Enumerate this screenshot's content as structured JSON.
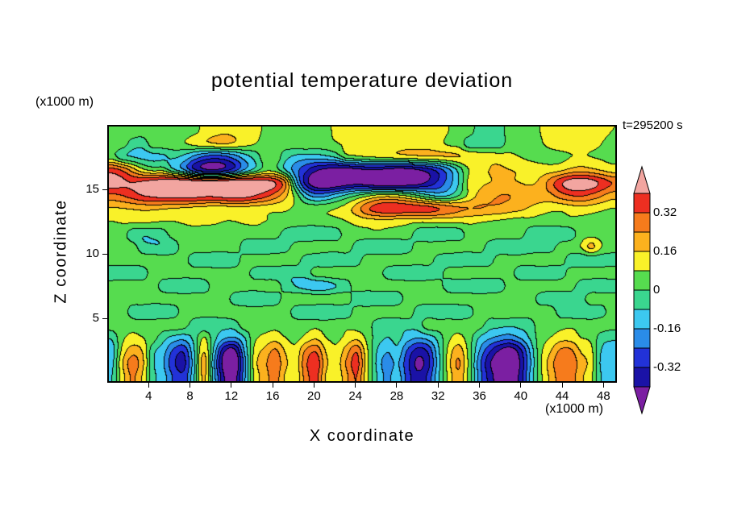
{
  "figure": {
    "title": "potential temperature deviation",
    "time_label": "t=295200 s",
    "x_axis": {
      "label": "X coordinate",
      "unit": "(x1000 m)",
      "ticks": [
        4,
        8,
        12,
        16,
        20,
        24,
        28,
        32,
        36,
        40,
        44,
        48
      ],
      "range": [
        0,
        49.3
      ]
    },
    "z_axis": {
      "label": "Z coordinate",
      "unit": "(x1000 m)",
      "ticks": [
        5,
        10,
        15
      ],
      "range": [
        0,
        20
      ]
    },
    "colorbar": {
      "labels": [
        "0.32",
        "0.16",
        "0",
        "-0.16",
        "-0.32"
      ]
    }
  },
  "colors": {
    "background": "#ffffff",
    "frame": "#000000",
    "text": "#000000"
  },
  "chart_data": {
    "type": "heatmap",
    "title": "potential temperature deviation",
    "xlabel": "X coordinate (x1000 m)",
    "ylabel": "Z coordinate (x1000 m)",
    "time_annotation": "t=295200 s",
    "x_range": [
      0,
      49.3
    ],
    "z_range": [
      0,
      20
    ],
    "x_ticks": [
      4,
      8,
      12,
      16,
      20,
      24,
      28,
      32,
      36,
      40,
      44,
      48
    ],
    "z_ticks": [
      5,
      10,
      15
    ],
    "levels": [
      -0.4,
      -0.32,
      -0.24,
      -0.16,
      -0.08,
      0,
      0.08,
      0.16,
      0.24,
      0.32,
      0.4
    ],
    "colors_low_to_high": [
      "#7b1fa2",
      "#1a12a6",
      "#2232d8",
      "#2a8ce8",
      "#3cc8f0",
      "#3ad68f",
      "#56dc4f",
      "#f9f129",
      "#fcb11e",
      "#f67b1c",
      "#ed2f21",
      "#f2a5a0"
    ],
    "colorbar_labels": [
      "0.32",
      "0.16",
      "0",
      "-0.16",
      "-0.32"
    ],
    "nx": 50,
    "nz": 20,
    "grid_rows_top_to_bottom": [
      [
        0.04,
        0.05,
        0.05,
        0.04,
        0.05,
        0.06,
        0.05,
        0.04,
        0.06,
        0.1,
        0.13,
        0.15,
        0.14,
        0.12,
        0.1,
        0.07,
        0.05,
        0.04,
        0.05,
        0.05,
        0.06,
        0.07,
        0.09,
        0.12,
        0.14,
        0.15,
        0.15,
        0.14,
        0.13,
        0.13,
        0.14,
        0.13,
        0.11,
        0.08,
        0.05,
        0.04,
        -0.04,
        -0.05,
        -0.04,
        0.04,
        0.05,
        0.06,
        0.08,
        0.11,
        0.13,
        0.14,
        0.13,
        0.12,
        0.1,
        0.08
      ],
      [
        0.05,
        0.04,
        -0.04,
        -0.05,
        0.04,
        0.05,
        0.06,
        0.07,
        0.1,
        0.13,
        0.15,
        0.16,
        0.14,
        0.11,
        0.08,
        0.05,
        0.04,
        0.04,
        0.05,
        0.06,
        0.05,
        0.05,
        0.07,
        0.1,
        0.12,
        0.13,
        0.13,
        0.12,
        0.12,
        0.13,
        0.13,
        0.12,
        0.1,
        0.07,
        0.05,
        -0.04,
        -0.06,
        -0.05,
        -0.04,
        0.04,
        0.05,
        0.05,
        0.07,
        0.1,
        0.12,
        0.12,
        0.11,
        0.1,
        0.08,
        0.06
      ],
      [
        0.04,
        -0.05,
        -0.08,
        -0.1,
        -0.1,
        -0.09,
        -0.07,
        -0.1,
        -0.18,
        -0.25,
        -0.28,
        -0.26,
        -0.2,
        -0.12,
        -0.05,
        0.04,
        0.05,
        -0.05,
        -0.1,
        -0.12,
        -0.12,
        -0.1,
        -0.06,
        0.04,
        0.06,
        0.08,
        0.09,
        0.1,
        0.12,
        0.13,
        0.14,
        0.15,
        0.15,
        0.16,
        0.16,
        0.15,
        0.14,
        0.13,
        0.12,
        0.1,
        0.08,
        0.06,
        0.05,
        0.05,
        0.06,
        0.08,
        0.09,
        0.08,
        0.07,
        0.06
      ],
      [
        0.35,
        0.3,
        0.2,
        0.1,
        0.05,
        0.05,
        -0.06,
        -0.15,
        -0.3,
        -0.38,
        -0.4,
        -0.36,
        -0.28,
        -0.15,
        -0.05,
        0.05,
        0.04,
        -0.08,
        -0.2,
        -0.3,
        -0.38,
        -0.42,
        -0.44,
        -0.44,
        -0.42,
        -0.4,
        -0.4,
        -0.42,
        -0.44,
        -0.43,
        -0.4,
        -0.35,
        -0.28,
        -0.18,
        -0.05,
        0.08,
        0.13,
        0.16,
        0.17,
        0.16,
        0.15,
        0.13,
        0.12,
        0.12,
        0.14,
        0.18,
        0.2,
        0.18,
        0.15,
        0.12
      ],
      [
        0.45,
        0.42,
        0.4,
        0.42,
        0.45,
        0.48,
        0.5,
        0.5,
        0.48,
        0.46,
        0.46,
        0.48,
        0.5,
        0.5,
        0.48,
        0.45,
        0.4,
        0.25,
        -0.1,
        -0.35,
        -0.48,
        -0.52,
        -0.5,
        -0.46,
        -0.44,
        -0.46,
        -0.5,
        -0.52,
        -0.52,
        -0.48,
        -0.44,
        -0.38,
        -0.3,
        -0.2,
        -0.08,
        0.1,
        0.14,
        0.16,
        0.17,
        0.17,
        0.16,
        0.15,
        0.18,
        0.28,
        0.38,
        0.45,
        0.46,
        0.44,
        0.38,
        0.32
      ],
      [
        0.3,
        0.32,
        0.36,
        0.4,
        0.42,
        0.44,
        0.45,
        0.45,
        0.44,
        0.42,
        0.42,
        0.44,
        0.45,
        0.44,
        0.4,
        0.35,
        0.28,
        0.18,
        0.05,
        -0.12,
        -0.2,
        -0.18,
        -0.12,
        -0.06,
        0.0,
        0.05,
        0.1,
        0.12,
        0.1,
        0.06,
        0.0,
        -0.06,
        -0.1,
        -0.08,
        0.0,
        0.1,
        0.18,
        0.22,
        0.24,
        0.24,
        0.22,
        0.2,
        0.2,
        0.22,
        0.28,
        0.32,
        0.33,
        0.3,
        0.25,
        0.2
      ],
      [
        0.15,
        0.16,
        0.17,
        0.18,
        0.18,
        0.17,
        0.16,
        0.15,
        0.14,
        0.13,
        0.12,
        0.12,
        0.13,
        0.13,
        0.12,
        0.11,
        0.1,
        0.09,
        0.07,
        0.05,
        0.05,
        0.06,
        0.08,
        0.12,
        0.2,
        0.3,
        0.36,
        0.38,
        0.38,
        0.37,
        0.36,
        0.35,
        0.32,
        0.28,
        0.25,
        0.24,
        0.24,
        0.23,
        0.22,
        0.2,
        0.18,
        0.15,
        0.12,
        0.1,
        0.1,
        0.12,
        0.13,
        0.12,
        0.1,
        0.08
      ],
      [
        0.08,
        0.09,
        0.1,
        0.1,
        0.09,
        0.08,
        0.08,
        0.09,
        0.1,
        0.1,
        0.09,
        0.08,
        0.08,
        0.09,
        0.09,
        0.08,
        0.07,
        0.06,
        0.05,
        0.04,
        0.04,
        0.05,
        0.06,
        0.08,
        0.1,
        0.12,
        0.13,
        0.13,
        0.12,
        0.11,
        0.1,
        0.1,
        0.1,
        0.1,
        0.1,
        0.1,
        0.09,
        0.08,
        0.07,
        0.06,
        0.05,
        0.05,
        0.04,
        0.04,
        0.05,
        0.06,
        0.06,
        0.05,
        0.04,
        0.04
      ],
      [
        0.05,
        0.04,
        -0.05,
        -0.07,
        -0.06,
        -0.04,
        0.04,
        0.05,
        0.05,
        0.04,
        0.05,
        0.06,
        0.05,
        0.04,
        0.05,
        0.05,
        0.04,
        -0.04,
        -0.06,
        -0.07,
        -0.07,
        -0.06,
        -0.04,
        0.04,
        0.05,
        0.05,
        0.06,
        0.05,
        0.05,
        0.04,
        -0.04,
        -0.06,
        -0.07,
        -0.06,
        -0.05,
        0.04,
        0.05,
        0.05,
        0.04,
        0.05,
        0.04,
        -0.05,
        -0.06,
        -0.07,
        -0.06,
        -0.04,
        0.04,
        0.05,
        0.05,
        0.04
      ],
      [
        0.04,
        0.05,
        0.04,
        -0.05,
        -0.07,
        -0.07,
        -0.05,
        0.04,
        0.05,
        0.06,
        0.05,
        0.04,
        0.05,
        -0.04,
        -0.06,
        -0.07,
        -0.06,
        -0.04,
        0.04,
        0.05,
        0.06,
        0.05,
        0.04,
        0.05,
        -0.04,
        -0.06,
        -0.07,
        -0.07,
        -0.06,
        -0.04,
        0.04,
        0.05,
        0.05,
        0.06,
        0.05,
        0.04,
        0.05,
        -0.04,
        -0.06,
        -0.07,
        -0.07,
        -0.06,
        -0.05,
        -0.04,
        0.04,
        0.05,
        0.08,
        0.18,
        0.08,
        0.05
      ],
      [
        0.05,
        0.06,
        0.05,
        0.04,
        0.05,
        0.04,
        0.05,
        0.04,
        -0.05,
        -0.07,
        -0.07,
        -0.06,
        -0.05,
        0.04,
        0.05,
        0.05,
        0.06,
        0.05,
        0.04,
        -0.04,
        -0.06,
        -0.08,
        -0.07,
        -0.05,
        -0.04,
        0.05,
        0.06,
        0.05,
        0.04,
        0.05,
        0.04,
        0.05,
        -0.04,
        -0.06,
        -0.07,
        -0.06,
        -0.05,
        -0.04,
        0.05,
        0.05,
        0.04,
        0.05,
        0.06,
        0.05,
        0.04,
        -0.05,
        -0.06,
        -0.06,
        -0.05,
        -0.05
      ],
      [
        -0.05,
        -0.06,
        -0.05,
        -0.04,
        0.04,
        0.05,
        0.06,
        0.05,
        0.04,
        0.05,
        0.05,
        0.04,
        0.05,
        0.04,
        -0.04,
        -0.06,
        -0.07,
        -0.07,
        -0.06,
        -0.04,
        0.04,
        0.05,
        0.06,
        0.05,
        0.05,
        0.04,
        0.05,
        -0.04,
        -0.06,
        -0.07,
        -0.07,
        -0.06,
        -0.04,
        0.04,
        0.05,
        0.06,
        0.05,
        0.04,
        0.05,
        0.04,
        -0.05,
        -0.06,
        -0.07,
        -0.06,
        -0.05,
        0.04,
        0.05,
        0.05,
        0.04,
        0.05
      ],
      [
        0.04,
        0.05,
        0.05,
        0.04,
        0.05,
        -0.04,
        -0.06,
        -0.07,
        -0.06,
        -0.05,
        0.04,
        0.05,
        0.06,
        0.05,
        0.04,
        0.05,
        0.05,
        -0.04,
        -0.08,
        -0.12,
        -0.14,
        -0.12,
        -0.08,
        -0.04,
        0.05,
        0.05,
        0.06,
        0.05,
        0.04,
        0.05,
        0.04,
        0.05,
        0.04,
        -0.05,
        -0.06,
        -0.07,
        -0.07,
        -0.06,
        -0.05,
        0.04,
        0.05,
        0.06,
        0.05,
        0.04,
        0.05,
        0.04,
        -0.05,
        -0.06,
        -0.06,
        -0.05
      ],
      [
        0.05,
        0.04,
        0.05,
        0.06,
        0.05,
        0.04,
        0.05,
        0.04,
        0.05,
        0.05,
        0.04,
        0.05,
        -0.04,
        -0.06,
        -0.07,
        -0.06,
        -0.05,
        0.04,
        0.05,
        0.06,
        0.05,
        0.04,
        0.05,
        0.04,
        -0.05,
        -0.07,
        -0.07,
        -0.06,
        -0.05,
        0.04,
        0.05,
        0.05,
        0.06,
        0.05,
        0.04,
        0.05,
        0.04,
        0.05,
        0.06,
        0.05,
        0.04,
        0.05,
        -0.04,
        -0.06,
        -0.07,
        -0.06,
        -0.04,
        0.05,
        0.04,
        0.05
      ],
      [
        0.04,
        0.05,
        -0.04,
        -0.06,
        -0.07,
        -0.06,
        -0.05,
        0.04,
        0.05,
        0.06,
        0.05,
        0.04,
        0.05,
        0.05,
        0.04,
        0.05,
        0.06,
        0.05,
        -0.04,
        -0.06,
        -0.07,
        -0.07,
        -0.06,
        -0.05,
        0.04,
        0.05,
        0.05,
        0.04,
        0.05,
        0.06,
        -0.04,
        -0.06,
        -0.07,
        -0.06,
        -0.05,
        -0.04,
        0.05,
        0.04,
        0.05,
        0.05,
        0.04,
        0.05,
        0.06,
        0.05,
        -0.04,
        -0.06,
        -0.06,
        -0.05,
        -0.04,
        0.05
      ],
      [
        0.05,
        0.06,
        0.05,
        0.04,
        0.05,
        0.04,
        0.05,
        0.04,
        -0.04,
        -0.06,
        -0.06,
        -0.05,
        -0.04,
        0.05,
        0.04,
        0.05,
        0.06,
        0.05,
        0.04,
        0.05,
        0.05,
        0.04,
        0.05,
        0.06,
        0.05,
        0.04,
        -0.04,
        -0.06,
        -0.06,
        -0.05,
        -0.04,
        0.05,
        0.04,
        0.05,
        0.04,
        0.05,
        0.04,
        -0.04,
        -0.05,
        -0.06,
        -0.05,
        -0.04,
        0.05,
        0.04,
        0.05,
        0.06,
        0.05,
        0.04,
        0.05,
        0.04
      ],
      [
        -0.06,
        0.06,
        0.1,
        0.08,
        0.04,
        -0.05,
        -0.1,
        -0.12,
        -0.06,
        0.08,
        -0.05,
        -0.14,
        -0.16,
        -0.08,
        0.06,
        0.1,
        0.12,
        0.08,
        0.06,
        0.1,
        0.14,
        0.08,
        0.06,
        0.1,
        0.13,
        0.06,
        -0.04,
        -0.08,
        -0.06,
        -0.12,
        -0.15,
        -0.12,
        -0.05,
        0.06,
        0.1,
        0.04,
        -0.08,
        -0.14,
        -0.18,
        -0.2,
        -0.15,
        -0.07,
        0.04,
        0.08,
        0.12,
        0.12,
        0.08,
        0.06,
        -0.04,
        -0.06
      ],
      [
        -0.12,
        0.1,
        0.2,
        0.15,
        -0.05,
        -0.12,
        -0.25,
        -0.3,
        -0.1,
        0.15,
        -0.1,
        -0.38,
        -0.42,
        -0.15,
        0.1,
        0.18,
        0.25,
        0.15,
        0.1,
        0.25,
        0.3,
        0.15,
        0.1,
        0.2,
        0.3,
        0.1,
        -0.08,
        -0.15,
        -0.1,
        -0.25,
        -0.35,
        -0.3,
        -0.1,
        0.1,
        0.2,
        0.05,
        -0.15,
        -0.3,
        -0.4,
        -0.45,
        -0.35,
        -0.15,
        0.05,
        0.15,
        0.25,
        0.25,
        0.15,
        0.1,
        -0.08,
        -0.12
      ],
      [
        -0.1,
        0.15,
        0.28,
        0.18,
        -0.06,
        -0.15,
        -0.3,
        -0.35,
        -0.12,
        0.2,
        -0.15,
        -0.45,
        -0.5,
        -0.2,
        0.12,
        0.22,
        0.3,
        0.18,
        0.12,
        0.3,
        0.38,
        0.18,
        0.12,
        0.25,
        0.35,
        0.12,
        -0.1,
        -0.2,
        -0.15,
        -0.3,
        -0.42,
        -0.35,
        -0.12,
        0.12,
        0.25,
        0.06,
        -0.2,
        -0.38,
        -0.48,
        -0.52,
        -0.4,
        -0.18,
        0.06,
        0.2,
        0.3,
        0.3,
        0.2,
        0.12,
        -0.1,
        -0.15
      ],
      [
        -0.08,
        0.12,
        0.25,
        0.15,
        -0.05,
        -0.12,
        -0.25,
        -0.3,
        -0.1,
        0.18,
        -0.12,
        -0.4,
        -0.45,
        -0.18,
        0.1,
        0.2,
        0.28,
        0.15,
        0.1,
        0.28,
        0.35,
        0.15,
        0.1,
        0.22,
        0.32,
        0.1,
        -0.08,
        -0.18,
        -0.12,
        -0.28,
        -0.38,
        -0.3,
        -0.1,
        0.1,
        0.22,
        0.05,
        -0.18,
        -0.35,
        -0.45,
        -0.48,
        -0.38,
        -0.15,
        0.05,
        0.18,
        0.28,
        0.28,
        0.18,
        0.1,
        -0.08,
        -0.12
      ]
    ]
  }
}
